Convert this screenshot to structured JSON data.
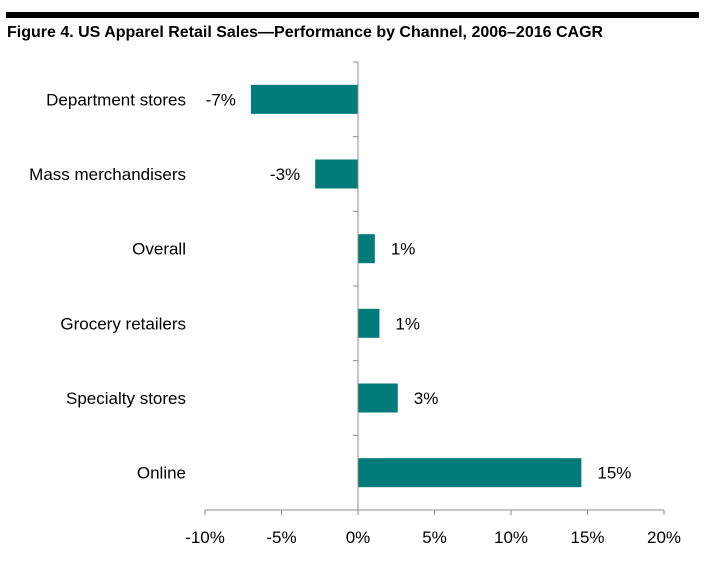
{
  "chart_data": {
    "type": "bar",
    "orientation": "horizontal",
    "title": "Figure 4. US Apparel Retail Sales—Performance by Channel, 2006–2016 CAGR",
    "categories": [
      "Department stores",
      "Mass merchandisers",
      "Overall",
      "Grocery retailers",
      "Specialty stores",
      "Online"
    ],
    "values": [
      -7,
      -2.8,
      1.1,
      1.4,
      2.6,
      14.6
    ],
    "data_labels": [
      "-7%",
      "-3%",
      "1%",
      "1%",
      "3%",
      "15%"
    ],
    "xlim": [
      -10,
      20
    ],
    "xticks": [
      -10,
      -5,
      0,
      5,
      10,
      15,
      20
    ],
    "xtick_labels": [
      "-10%",
      "-5%",
      "0%",
      "5%",
      "10%",
      "15%",
      "20%"
    ],
    "xlabel": "",
    "ylabel": "",
    "grid": false,
    "legend": "none",
    "bar_color": "#017a7a"
  }
}
